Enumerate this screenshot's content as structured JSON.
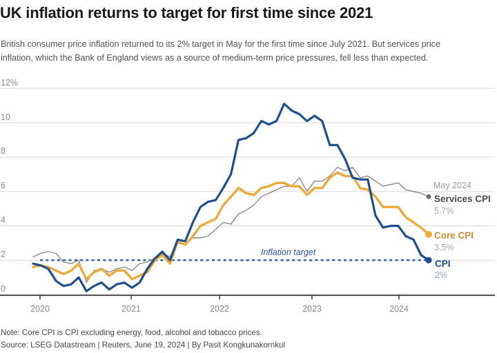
{
  "chart_data": {
    "type": "line",
    "title": "UK inflation returns to target for first time since 2021",
    "subtitle_line1": "British consumer price inflation returned to its 2% target in May for the first time since July 2021. But services price",
    "subtitle_line2": "inflation, which the Bank of England views as a source of medium-term price pressures, fell less than expected.",
    "x_frequency": "monthly",
    "x_start": "Jan 2020",
    "x_end": "May 2024",
    "x_ticks": [
      "2020",
      "2021",
      "2022",
      "2023",
      "2024"
    ],
    "y_ticks": [
      "12%",
      "10",
      "8",
      "6",
      "4",
      "2",
      "0"
    ],
    "y_tick_values": [
      12,
      10,
      8,
      6,
      4,
      2,
      0
    ],
    "ylim": [
      0,
      12
    ],
    "grid": "horizontal",
    "legend_position": "right-of-line-endpoints",
    "target_line": {
      "value": 2,
      "label": "Inflation target",
      "color": "#1f4e96",
      "style": "dashed"
    },
    "annotation_date": "May 2024",
    "series": [
      {
        "name": "CPI",
        "latest_value_label": "2%",
        "color": "#1d4f91",
        "label_color": "#1d4f91",
        "value_color": "#93a2bd",
        "line_width": 3.2,
        "dot_radius": 4.6,
        "dot_color": "#1d4f91",
        "values": [
          1.8,
          1.7,
          1.5,
          0.8,
          0.5,
          0.6,
          1.0,
          0.2,
          0.5,
          0.7,
          0.3,
          0.6,
          0.7,
          0.4,
          0.7,
          1.5,
          2.1,
          2.5,
          2.0,
          3.2,
          3.1,
          4.2,
          5.1,
          5.4,
          5.5,
          6.2,
          7.0,
          9.0,
          9.1,
          9.4,
          10.1,
          9.9,
          10.1,
          11.1,
          10.7,
          10.5,
          10.1,
          10.4,
          10.1,
          8.7,
          8.7,
          7.9,
          6.8,
          6.7,
          6.7,
          4.6,
          3.9,
          4.0,
          4.0,
          3.4,
          3.2,
          2.3,
          2.0
        ]
      },
      {
        "name": "Core CPI",
        "latest_value_label": "3.5%",
        "color": "#edaa3a",
        "label_color": "#c6912f",
        "value_color": "#a6a6a6",
        "line_width": 3.4,
        "dot_radius": 5,
        "dot_color": "#edaa3a",
        "values": [
          1.6,
          1.7,
          1.6,
          1.4,
          1.2,
          1.4,
          1.8,
          0.9,
          1.3,
          1.5,
          1.1,
          1.4,
          1.4,
          0.9,
          1.1,
          1.3,
          2.0,
          2.3,
          1.8,
          3.1,
          2.9,
          3.4,
          4.0,
          4.2,
          4.4,
          5.2,
          5.7,
          6.2,
          5.9,
          5.8,
          6.2,
          6.3,
          6.5,
          6.5,
          6.3,
          6.3,
          5.8,
          6.2,
          6.2,
          6.8,
          7.1,
          6.9,
          6.9,
          6.2,
          6.1,
          5.7,
          5.1,
          5.1,
          5.1,
          4.5,
          4.2,
          3.9,
          3.5
        ]
      },
      {
        "name": "Services CPI",
        "latest_value_label": "5.7%",
        "color": "#8a8a8a",
        "label_color": "#4c4c4c",
        "value_color": "#a6a6a6",
        "line_width": 1.4,
        "dot_radius": 3.4,
        "dot_color": "#6f6f6f",
        "values": [
          2.2,
          2.4,
          2.5,
          2.4,
          1.9,
          1.8,
          2.0,
          0.7,
          1.4,
          1.5,
          1.3,
          1.5,
          1.6,
          1.4,
          1.8,
          1.9,
          2.1,
          2.4,
          2.2,
          3.0,
          2.9,
          3.3,
          3.3,
          3.4,
          3.8,
          4.2,
          4.1,
          4.7,
          4.9,
          5.2,
          5.7,
          5.9,
          6.1,
          6.3,
          6.3,
          6.8,
          6.0,
          6.6,
          6.6,
          6.9,
          7.4,
          7.2,
          7.4,
          6.8,
          6.9,
          6.6,
          6.3,
          6.4,
          6.5,
          6.1,
          6.0,
          5.9,
          5.7
        ]
      }
    ],
    "note": "Note: Core CPI is CPI excluding energy, food, alcohol and tobacco prices.",
    "source": "Source: LSEG Datastream | Reuters, June 19, 2024 | By Pasit Kongkunakornkul"
  }
}
